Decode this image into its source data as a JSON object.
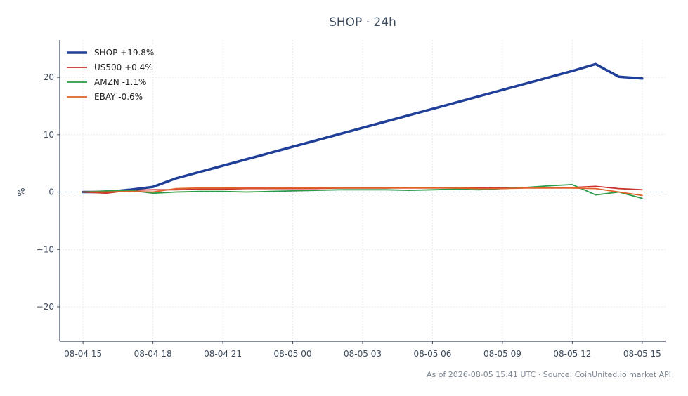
{
  "chart_data": {
    "type": "line",
    "title": "SHOP · 24h",
    "xlabel": "",
    "ylabel": "%",
    "ylim": [
      -26,
      26.5
    ],
    "xlim": [
      "08-04 14",
      "08-05 16"
    ],
    "x_ticks": [
      "08-04 15",
      "08-04 18",
      "08-04 21",
      "08-05 00",
      "08-05 03",
      "08-05 06",
      "08-05 09",
      "08-05 12",
      "08-05 15"
    ],
    "y_ticks": [
      -20,
      -10,
      0,
      10,
      20
    ],
    "y_tick_labels": [
      "−20",
      "−10",
      "0",
      "10",
      "20"
    ],
    "grid": true,
    "zero_line": true,
    "legend_position": "top-left",
    "x": [
      "08-04 15",
      "08-04 16",
      "08-04 17",
      "08-04 18",
      "08-04 19",
      "08-04 20",
      "08-04 21",
      "08-04 22",
      "08-04 23",
      "08-05 00",
      "08-05 01",
      "08-05 02",
      "08-05 03",
      "08-05 04",
      "08-05 05",
      "08-05 06",
      "08-05 07",
      "08-05 08",
      "08-05 09",
      "08-05 10",
      "08-05 11",
      "08-05 12",
      "08-05 13",
      "08-05 14",
      "08-05 15"
    ],
    "series": [
      {
        "name": "SHOP +19.8%",
        "color": "#1f3f99",
        "width": 3.5,
        "values": [
          0.0,
          0.0,
          0.4,
          0.9,
          2.4,
          3.5,
          4.6,
          5.7,
          6.8,
          7.9,
          9.0,
          10.1,
          11.2,
          12.3,
          13.4,
          14.5,
          15.6,
          16.7,
          17.8,
          18.9,
          20.0,
          21.1,
          22.3,
          20.1,
          19.8
        ]
      },
      {
        "name": "US500 +0.4%",
        "color": "#c8312c",
        "width": 1.8,
        "values": [
          0.0,
          -0.2,
          0.3,
          0.4,
          0.4,
          0.5,
          0.5,
          0.6,
          0.6,
          0.6,
          0.6,
          0.7,
          0.7,
          0.7,
          0.8,
          0.8,
          0.7,
          0.7,
          0.7,
          0.8,
          0.8,
          0.8,
          1.0,
          0.6,
          0.4
        ]
      },
      {
        "name": "AMZN -1.1%",
        "color": "#2b9a48",
        "width": 1.8,
        "values": [
          0.0,
          0.2,
          0.3,
          -0.2,
          0.0,
          0.1,
          0.1,
          0.0,
          0.1,
          0.2,
          0.3,
          0.4,
          0.4,
          0.4,
          0.3,
          0.4,
          0.5,
          0.4,
          0.6,
          0.8,
          1.1,
          1.3,
          -0.5,
          0.0,
          -1.1
        ]
      },
      {
        "name": "EBAY -0.6%",
        "color": "#e0602a",
        "width": 1.8,
        "values": [
          0.0,
          0.0,
          0.1,
          0.0,
          0.6,
          0.7,
          0.7,
          0.7,
          0.7,
          0.7,
          0.7,
          0.7,
          0.7,
          0.7,
          0.7,
          0.7,
          0.7,
          0.6,
          0.6,
          0.7,
          0.7,
          0.7,
          0.6,
          0.0,
          -0.6
        ]
      }
    ]
  },
  "footer": "As of 2026-08-05 15:41 UTC · Source: CoinUnited.io market API"
}
